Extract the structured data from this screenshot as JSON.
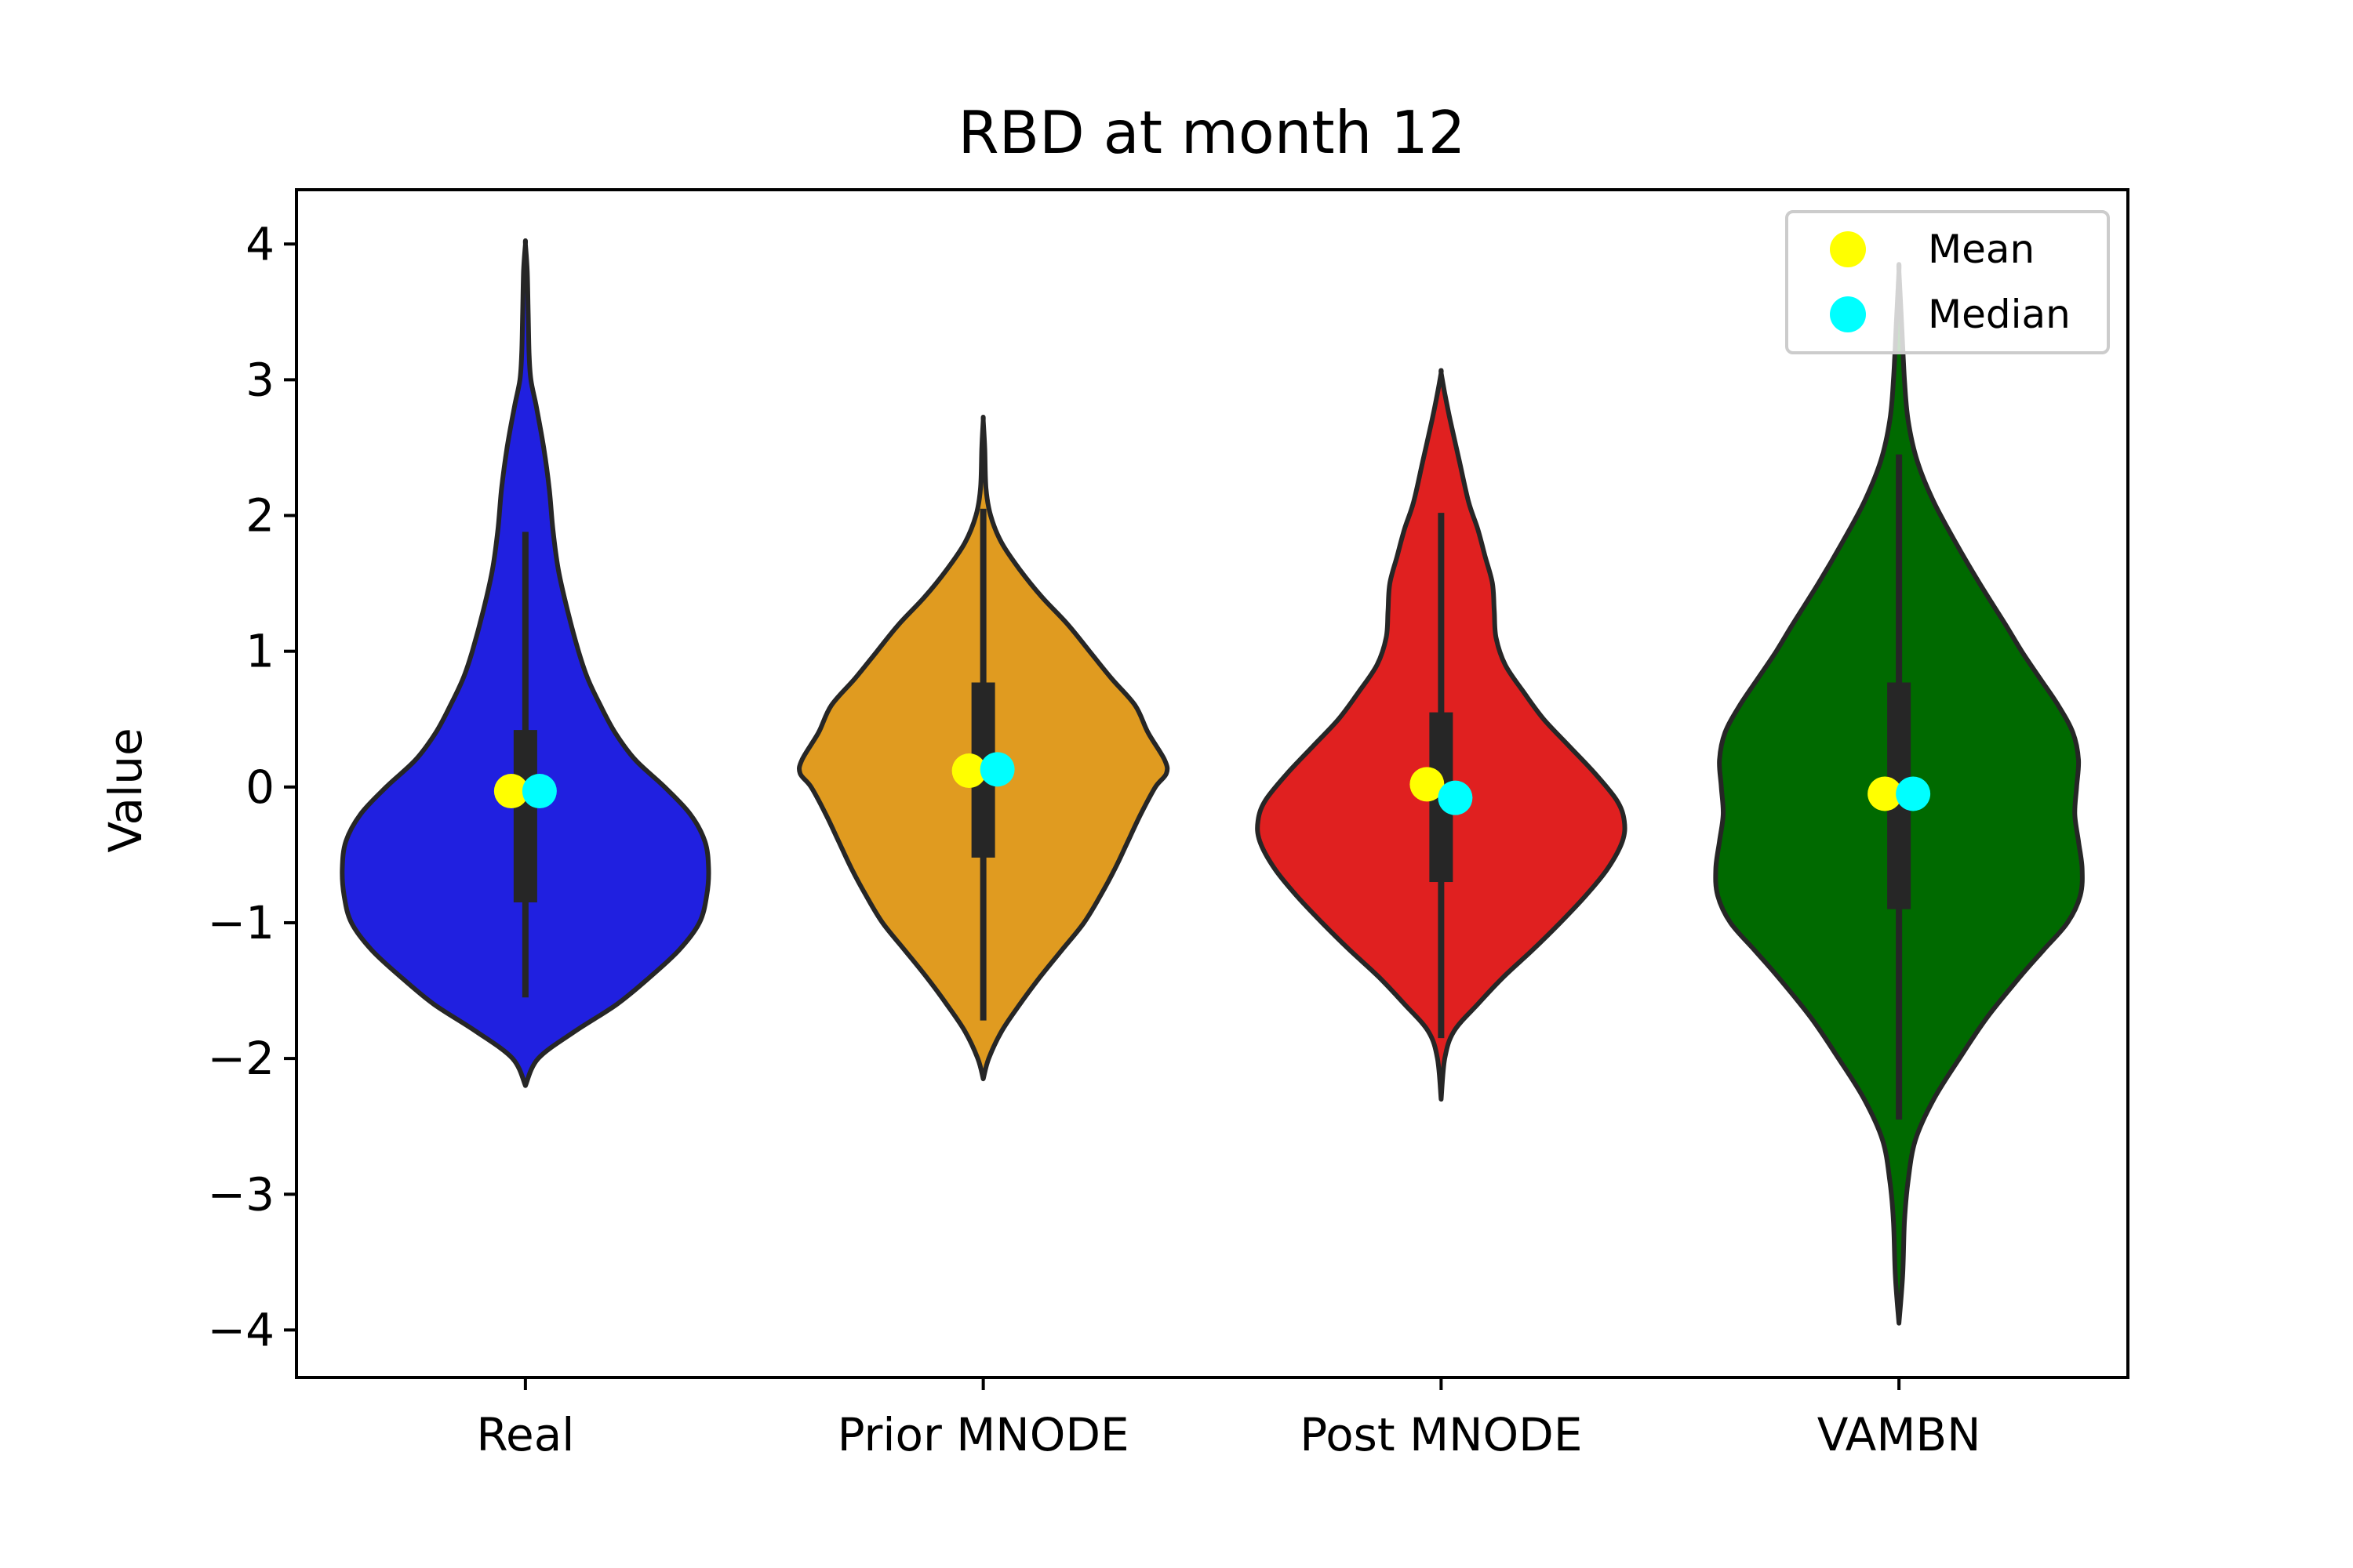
{
  "chart_data": {
    "type": "violin",
    "title": "RBD at month 12",
    "xlabel": "",
    "ylabel": "Value",
    "ylim": [
      -4.35,
      4.4
    ],
    "yticks": [
      -4,
      -3,
      -2,
      -1,
      0,
      1,
      2,
      3,
      4
    ],
    "ytick_labels": [
      "−4",
      "−3",
      "−2",
      "−1",
      "0",
      "1",
      "2",
      "3",
      "4"
    ],
    "categories": [
      "Real",
      "Prior MNODE",
      "Post MNODE",
      "VAMBN"
    ],
    "grid": false,
    "legend": {
      "position": "top-right",
      "entries": [
        {
          "label": "Mean",
          "color": "#ffff00"
        },
        {
          "label": "Median",
          "color": "#00ffff"
        }
      ]
    },
    "series": [
      {
        "category": "Real",
        "color": "#2020e0",
        "min": -2.2,
        "max": 4.0,
        "q1": -0.85,
        "q3": 0.42,
        "whisker_low": -1.55,
        "whisker_high": 1.88,
        "mean": -0.03,
        "median": -0.03,
        "profile": [
          [
            -2.2,
            0.0
          ],
          [
            -2.0,
            0.07
          ],
          [
            -1.8,
            0.27
          ],
          [
            -1.6,
            0.5
          ],
          [
            -1.4,
            0.68
          ],
          [
            -1.2,
            0.84
          ],
          [
            -1.0,
            0.95
          ],
          [
            -0.8,
            0.99
          ],
          [
            -0.6,
            1.0
          ],
          [
            -0.4,
            0.98
          ],
          [
            -0.2,
            0.9
          ],
          [
            0.0,
            0.76
          ],
          [
            0.2,
            0.6
          ],
          [
            0.4,
            0.49
          ],
          [
            0.6,
            0.41
          ],
          [
            0.8,
            0.34
          ],
          [
            1.0,
            0.29
          ],
          [
            1.3,
            0.23
          ],
          [
            1.6,
            0.18
          ],
          [
            1.9,
            0.15
          ],
          [
            2.2,
            0.13
          ],
          [
            2.5,
            0.1
          ],
          [
            2.8,
            0.06
          ],
          [
            3.0,
            0.03
          ],
          [
            3.2,
            0.02
          ],
          [
            3.5,
            0.015
          ],
          [
            3.8,
            0.01
          ],
          [
            4.0,
            0.0
          ]
        ]
      },
      {
        "category": "Prior MNODE",
        "color": "#e09b20",
        "min": -2.15,
        "max": 2.7,
        "q1": -0.52,
        "q3": 0.77,
        "whisker_low": -1.72,
        "whisker_high": 2.05,
        "mean": 0.12,
        "median": 0.13,
        "profile": [
          [
            -2.15,
            0.0
          ],
          [
            -2.0,
            0.03
          ],
          [
            -1.8,
            0.1
          ],
          [
            -1.6,
            0.2
          ],
          [
            -1.4,
            0.31
          ],
          [
            -1.2,
            0.43
          ],
          [
            -1.0,
            0.55
          ],
          [
            -0.8,
            0.64
          ],
          [
            -0.6,
            0.72
          ],
          [
            -0.4,
            0.79
          ],
          [
            -0.2,
            0.86
          ],
          [
            0.0,
            0.94
          ],
          [
            0.1,
            1.0
          ],
          [
            0.2,
            0.99
          ],
          [
            0.4,
            0.9
          ],
          [
            0.6,
            0.83
          ],
          [
            0.8,
            0.7
          ],
          [
            1.0,
            0.58
          ],
          [
            1.2,
            0.46
          ],
          [
            1.4,
            0.32
          ],
          [
            1.6,
            0.2
          ],
          [
            1.8,
            0.1
          ],
          [
            2.0,
            0.04
          ],
          [
            2.2,
            0.015
          ],
          [
            2.5,
            0.008
          ],
          [
            2.7,
            0.0
          ]
        ]
      },
      {
        "category": "Post MNODE",
        "color": "#e02020",
        "min": -2.3,
        "max": 3.05,
        "q1": -0.7,
        "q3": 0.55,
        "whisker_low": -1.85,
        "whisker_high": 2.02,
        "mean": 0.02,
        "median": -0.08,
        "profile": [
          [
            -2.3,
            0.0
          ],
          [
            -2.0,
            0.02
          ],
          [
            -1.8,
            0.07
          ],
          [
            -1.6,
            0.2
          ],
          [
            -1.4,
            0.34
          ],
          [
            -1.2,
            0.5
          ],
          [
            -1.0,
            0.65
          ],
          [
            -0.8,
            0.79
          ],
          [
            -0.6,
            0.91
          ],
          [
            -0.4,
            0.99
          ],
          [
            -0.25,
            1.0
          ],
          [
            -0.1,
            0.96
          ],
          [
            0.1,
            0.84
          ],
          [
            0.3,
            0.7
          ],
          [
            0.5,
            0.56
          ],
          [
            0.7,
            0.45
          ],
          [
            0.9,
            0.35
          ],
          [
            1.1,
            0.3
          ],
          [
            1.3,
            0.29
          ],
          [
            1.5,
            0.28
          ],
          [
            1.7,
            0.24
          ],
          [
            1.9,
            0.2
          ],
          [
            2.1,
            0.15
          ],
          [
            2.4,
            0.1
          ],
          [
            2.7,
            0.05
          ],
          [
            2.9,
            0.02
          ],
          [
            3.05,
            0.0
          ]
        ]
      },
      {
        "category": "VAMBN",
        "color": "#006a00",
        "min": -3.95,
        "max": 3.8,
        "q1": -0.9,
        "q3": 0.77,
        "whisker_low": -2.45,
        "whisker_high": 2.45,
        "mean": -0.05,
        "median": -0.05,
        "profile": [
          [
            -3.95,
            0.0
          ],
          [
            -3.6,
            0.02
          ],
          [
            -3.2,
            0.03
          ],
          [
            -2.9,
            0.05
          ],
          [
            -2.6,
            0.09
          ],
          [
            -2.3,
            0.19
          ],
          [
            -2.0,
            0.33
          ],
          [
            -1.7,
            0.48
          ],
          [
            -1.4,
            0.66
          ],
          [
            -1.2,
            0.79
          ],
          [
            -1.0,
            0.92
          ],
          [
            -0.8,
            0.99
          ],
          [
            -0.6,
            1.0
          ],
          [
            -0.4,
            0.98
          ],
          [
            -0.2,
            0.96
          ],
          [
            0.0,
            0.97
          ],
          [
            0.2,
            0.98
          ],
          [
            0.4,
            0.95
          ],
          [
            0.6,
            0.87
          ],
          [
            0.8,
            0.77
          ],
          [
            1.0,
            0.67
          ],
          [
            1.2,
            0.58
          ],
          [
            1.5,
            0.44
          ],
          [
            1.8,
            0.31
          ],
          [
            2.1,
            0.19
          ],
          [
            2.4,
            0.1
          ],
          [
            2.7,
            0.05
          ],
          [
            3.0,
            0.03
          ],
          [
            3.4,
            0.015
          ],
          [
            3.8,
            0.0
          ]
        ]
      }
    ]
  }
}
